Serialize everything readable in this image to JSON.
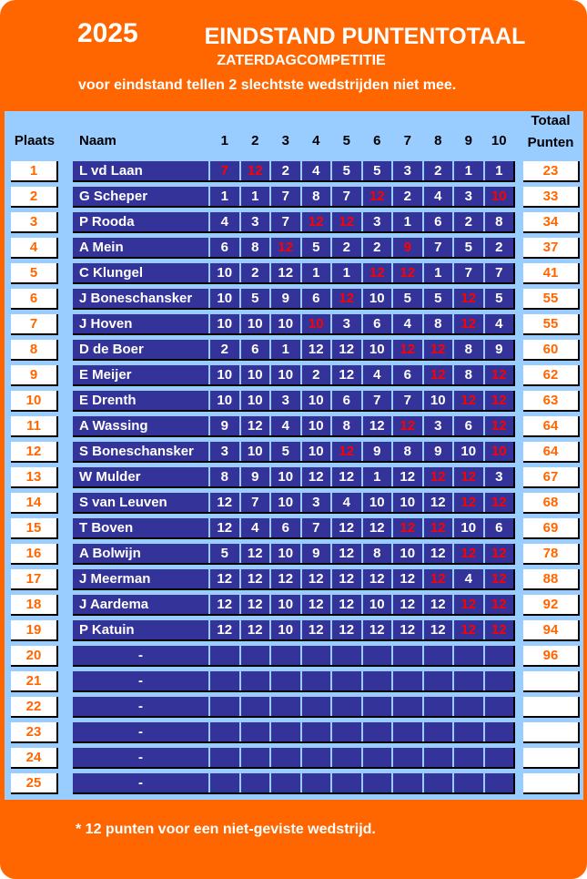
{
  "header": {
    "year": "2025",
    "title": "EINDSTAND PUNTENTOTAAL",
    "subtitle": "ZATERDAGCOMPETITIE",
    "note": "voor eindstand tellen 2 slechtste wedstrijden niet mee."
  },
  "table": {
    "col_place": "Plaats",
    "col_name": "Naam",
    "round_headers": [
      "1",
      "2",
      "3",
      "4",
      "5",
      "6",
      "7",
      "8",
      "9",
      "10"
    ],
    "col_total_line1": "Totaal",
    "col_total_line2": "Punten",
    "rows": [
      {
        "place": "1",
        "name": "L vd Laan",
        "scores": [
          [
            "7",
            1
          ],
          [
            "12",
            1
          ],
          [
            "2",
            0
          ],
          [
            "4",
            0
          ],
          [
            "5",
            0
          ],
          [
            "5",
            0
          ],
          [
            "3",
            0
          ],
          [
            "2",
            0
          ],
          [
            "1",
            0
          ],
          [
            "1",
            0
          ]
        ],
        "total": "23"
      },
      {
        "place": "2",
        "name": "G Scheper",
        "scores": [
          [
            "1",
            0
          ],
          [
            "1",
            0
          ],
          [
            "7",
            0
          ],
          [
            "8",
            0
          ],
          [
            "7",
            0
          ],
          [
            "12",
            1
          ],
          [
            "2",
            0
          ],
          [
            "4",
            0
          ],
          [
            "3",
            0
          ],
          [
            "10",
            1
          ]
        ],
        "total": "33"
      },
      {
        "place": "3",
        "name": "P Rooda",
        "scores": [
          [
            "4",
            0
          ],
          [
            "3",
            0
          ],
          [
            "7",
            0
          ],
          [
            "12",
            1
          ],
          [
            "12",
            1
          ],
          [
            "3",
            0
          ],
          [
            "1",
            0
          ],
          [
            "6",
            0
          ],
          [
            "2",
            0
          ],
          [
            "8",
            0
          ]
        ],
        "total": "34"
      },
      {
        "place": "4",
        "name": "A Mein",
        "scores": [
          [
            "6",
            0
          ],
          [
            "8",
            0
          ],
          [
            "12",
            1
          ],
          [
            "5",
            0
          ],
          [
            "2",
            0
          ],
          [
            "2",
            0
          ],
          [
            "9",
            1
          ],
          [
            "7",
            0
          ],
          [
            "5",
            0
          ],
          [
            "2",
            0
          ]
        ],
        "total": "37"
      },
      {
        "place": "5",
        "name": "C Klungel",
        "scores": [
          [
            "10",
            0
          ],
          [
            "2",
            0
          ],
          [
            "12",
            0
          ],
          [
            "1",
            0
          ],
          [
            "1",
            0
          ],
          [
            "12",
            1
          ],
          [
            "12",
            1
          ],
          [
            "1",
            0
          ],
          [
            "7",
            0
          ],
          [
            "7",
            0
          ]
        ],
        "total": "41"
      },
      {
        "place": "6",
        "name": "J Boneschansker",
        "scores": [
          [
            "10",
            0
          ],
          [
            "5",
            0
          ],
          [
            "9",
            0
          ],
          [
            "6",
            0
          ],
          [
            "12",
            1
          ],
          [
            "10",
            0
          ],
          [
            "5",
            0
          ],
          [
            "5",
            0
          ],
          [
            "12",
            1
          ],
          [
            "5",
            0
          ]
        ],
        "total": "55"
      },
      {
        "place": "7",
        "name": "J Hoven",
        "scores": [
          [
            "10",
            0
          ],
          [
            "10",
            0
          ],
          [
            "10",
            0
          ],
          [
            "10",
            1
          ],
          [
            "3",
            0
          ],
          [
            "6",
            0
          ],
          [
            "4",
            0
          ],
          [
            "8",
            0
          ],
          [
            "12",
            1
          ],
          [
            "4",
            0
          ]
        ],
        "total": "55"
      },
      {
        "place": "8",
        "name": "D de Boer",
        "scores": [
          [
            "2",
            0
          ],
          [
            "6",
            0
          ],
          [
            "1",
            0
          ],
          [
            "12",
            0
          ],
          [
            "12",
            0
          ],
          [
            "10",
            0
          ],
          [
            "12",
            1
          ],
          [
            "12",
            1
          ],
          [
            "8",
            0
          ],
          [
            "9",
            0
          ]
        ],
        "total": "60"
      },
      {
        "place": "9",
        "name": "E Meijer",
        "scores": [
          [
            "10",
            0
          ],
          [
            "10",
            0
          ],
          [
            "10",
            0
          ],
          [
            "2",
            0
          ],
          [
            "12",
            0
          ],
          [
            "4",
            0
          ],
          [
            "6",
            0
          ],
          [
            "12",
            1
          ],
          [
            "8",
            0
          ],
          [
            "12",
            1
          ]
        ],
        "total": "62"
      },
      {
        "place": "10",
        "name": "E Drenth",
        "scores": [
          [
            "10",
            0
          ],
          [
            "10",
            0
          ],
          [
            "3",
            0
          ],
          [
            "10",
            0
          ],
          [
            "6",
            0
          ],
          [
            "7",
            0
          ],
          [
            "7",
            0
          ],
          [
            "10",
            0
          ],
          [
            "12",
            1
          ],
          [
            "12",
            1
          ]
        ],
        "total": "63"
      },
      {
        "place": "11",
        "name": "A Wassing",
        "scores": [
          [
            "9",
            0
          ],
          [
            "12",
            0
          ],
          [
            "4",
            0
          ],
          [
            "10",
            0
          ],
          [
            "8",
            0
          ],
          [
            "12",
            0
          ],
          [
            "12",
            1
          ],
          [
            "3",
            0
          ],
          [
            "6",
            0
          ],
          [
            "12",
            1
          ]
        ],
        "total": "64"
      },
      {
        "place": "12",
        "name": "S Boneschansker",
        "scores": [
          [
            "3",
            0
          ],
          [
            "10",
            0
          ],
          [
            "5",
            0
          ],
          [
            "10",
            0
          ],
          [
            "12",
            1
          ],
          [
            "9",
            0
          ],
          [
            "8",
            0
          ],
          [
            "9",
            0
          ],
          [
            "10",
            0
          ],
          [
            "10",
            1
          ]
        ],
        "total": "64"
      },
      {
        "place": "13",
        "name": "W Mulder",
        "scores": [
          [
            "8",
            0
          ],
          [
            "9",
            0
          ],
          [
            "10",
            0
          ],
          [
            "12",
            0
          ],
          [
            "12",
            0
          ],
          [
            "1",
            0
          ],
          [
            "12",
            0
          ],
          [
            "12",
            1
          ],
          [
            "12",
            1
          ],
          [
            "3",
            0
          ]
        ],
        "total": "67"
      },
      {
        "place": "14",
        "name": "S van Leuven",
        "scores": [
          [
            "12",
            0
          ],
          [
            "7",
            0
          ],
          [
            "10",
            0
          ],
          [
            "3",
            0
          ],
          [
            "4",
            0
          ],
          [
            "10",
            0
          ],
          [
            "10",
            0
          ],
          [
            "12",
            0
          ],
          [
            "12",
            1
          ],
          [
            "12",
            1
          ]
        ],
        "total": "68"
      },
      {
        "place": "15",
        "name": "T Boven",
        "scores": [
          [
            "12",
            0
          ],
          [
            "4",
            0
          ],
          [
            "6",
            0
          ],
          [
            "7",
            0
          ],
          [
            "12",
            0
          ],
          [
            "12",
            0
          ],
          [
            "12",
            1
          ],
          [
            "12",
            1
          ],
          [
            "10",
            0
          ],
          [
            "6",
            0
          ]
        ],
        "total": "69"
      },
      {
        "place": "16",
        "name": "A Bolwijn",
        "scores": [
          [
            "5",
            0
          ],
          [
            "12",
            0
          ],
          [
            "10",
            0
          ],
          [
            "9",
            0
          ],
          [
            "12",
            0
          ],
          [
            "8",
            0
          ],
          [
            "10",
            0
          ],
          [
            "12",
            0
          ],
          [
            "12",
            1
          ],
          [
            "12",
            1
          ]
        ],
        "total": "78"
      },
      {
        "place": "17",
        "name": "J Meerman",
        "scores": [
          [
            "12",
            0
          ],
          [
            "12",
            0
          ],
          [
            "12",
            0
          ],
          [
            "12",
            0
          ],
          [
            "12",
            0
          ],
          [
            "12",
            0
          ],
          [
            "12",
            0
          ],
          [
            "12",
            1
          ],
          [
            "4",
            0
          ],
          [
            "12",
            1
          ]
        ],
        "total": "88"
      },
      {
        "place": "18",
        "name": "J Aardema",
        "scores": [
          [
            "12",
            0
          ],
          [
            "12",
            0
          ],
          [
            "10",
            0
          ],
          [
            "12",
            0
          ],
          [
            "12",
            0
          ],
          [
            "10",
            0
          ],
          [
            "12",
            0
          ],
          [
            "12",
            0
          ],
          [
            "12",
            1
          ],
          [
            "12",
            1
          ]
        ],
        "total": "92"
      },
      {
        "place": "19",
        "name": "P Katuin",
        "scores": [
          [
            "12",
            0
          ],
          [
            "12",
            0
          ],
          [
            "10",
            0
          ],
          [
            "12",
            0
          ],
          [
            "12",
            0
          ],
          [
            "12",
            0
          ],
          [
            "12",
            0
          ],
          [
            "12",
            0
          ],
          [
            "12",
            1
          ],
          [
            "12",
            1
          ]
        ],
        "total": "94"
      },
      {
        "place": "20",
        "name": "-",
        "scores": [],
        "total": "96"
      },
      {
        "place": "21",
        "name": "-",
        "scores": [],
        "total": ""
      },
      {
        "place": "22",
        "name": "-",
        "scores": [],
        "total": ""
      },
      {
        "place": "23",
        "name": "-",
        "scores": [],
        "total": ""
      },
      {
        "place": "24",
        "name": "-",
        "scores": [],
        "total": ""
      },
      {
        "place": "25",
        "name": "-",
        "scores": [],
        "total": ""
      }
    ]
  },
  "footer": {
    "note": "* 12 punten voor een niet-geviste wedstrijd."
  },
  "colors": {
    "orange": "#FF6600",
    "panel_blue": "#99CCFF",
    "cell_blue": "#333399",
    "excluded_red": "#FF0000",
    "box_white": "#FFFFFF",
    "border_black": "#000000"
  }
}
